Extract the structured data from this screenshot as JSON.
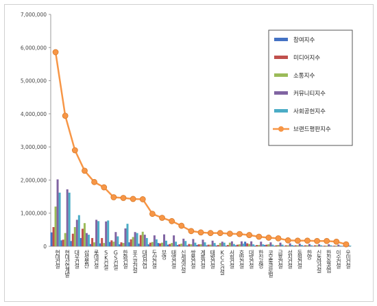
{
  "chart_data": {
    "type": "bar",
    "title": "",
    "xlabel": "",
    "ylabel": "",
    "ylim": [
      0,
      7000000
    ],
    "yticks": [
      0,
      1000000,
      2000000,
      3000000,
      4000000,
      5000000,
      6000000,
      7000000
    ],
    "ytick_labels": [
      "0",
      "1,000,000",
      "2,000,000",
      "3,000,000",
      "4,000,000",
      "5,000,000",
      "6,000,000",
      "7,000,000"
    ],
    "grid": false,
    "legend_position": "top-right",
    "categories": [
      "현대건설",
      "현대산업개발",
      "대우건설",
      "삼성물산",
      "롯데건설",
      "SK건설",
      "GS건설",
      "한화건설",
      "포스코건설",
      "대림산업",
      "두산건설",
      "부영",
      "태영건설",
      "신세계건설",
      "쌍용건설",
      "계룡건설",
      "태왕건설",
      "KCC건설",
      "서희건설",
      "호반건설",
      "대방건설",
      "한신공영",
      "코오롱글로벌",
      "금호건설",
      "성지건설",
      "동원건설",
      "한양",
      "신동아건설",
      "한진중공업",
      "이수건설",
      "우미건설"
    ],
    "series": [
      {
        "name": "참여지수",
        "kind": "bar",
        "color": "#4472c4",
        "values": [
          420000,
          180000,
          160000,
          250000,
          70000,
          90000,
          130000,
          60000,
          120000,
          80000,
          60000,
          100000,
          50000,
          40000,
          30000,
          40000,
          30000,
          25000,
          20000,
          30000,
          140000,
          20000,
          40000,
          15000,
          10000,
          20000,
          15000,
          10000,
          10000,
          10000,
          10000
        ]
      },
      {
        "name": "미디어지수",
        "kind": "bar",
        "color": "#c0504d",
        "values": [
          580000,
          200000,
          380000,
          530000,
          250000,
          250000,
          180000,
          120000,
          210000,
          340000,
          110000,
          90000,
          70000,
          60000,
          70000,
          60000,
          50000,
          40000,
          40000,
          50000,
          90000,
          40000,
          50000,
          30000,
          30000,
          30000,
          30000,
          30000,
          20000,
          20000,
          20000
        ]
      },
      {
        "name": "소통지수",
        "kind": "bar",
        "color": "#9bbb59",
        "values": [
          1200000,
          400000,
          580000,
          700000,
          120000,
          100000,
          140000,
          100000,
          280000,
          440000,
          130000,
          110000,
          100000,
          80000,
          60000,
          60000,
          50000,
          100000,
          110000,
          60000,
          70000,
          40000,
          60000,
          40000,
          30000,
          30000,
          30000,
          30000,
          20000,
          20000,
          20000
        ]
      },
      {
        "name": "커뮤니티지수",
        "kind": "bar",
        "color": "#8064a2",
        "values": [
          2020000,
          1720000,
          800000,
          400000,
          800000,
          750000,
          430000,
          540000,
          430000,
          350000,
          330000,
          360000,
          330000,
          230000,
          220000,
          200000,
          170000,
          140000,
          150000,
          150000,
          150000,
          140000,
          120000,
          110000,
          90000,
          80000,
          70000,
          60000,
          60000,
          50000,
          50000
        ]
      },
      {
        "name": "사회공헌지수",
        "kind": "bar",
        "color": "#4bacc6",
        "values": [
          1620000,
          1620000,
          940000,
          350000,
          760000,
          780000,
          300000,
          680000,
          400000,
          250000,
          210000,
          170000,
          140000,
          160000,
          110000,
          120000,
          100000,
          110000,
          70000,
          80000,
          60000,
          60000,
          50000,
          50000,
          40000,
          40000,
          30000,
          30000,
          30000,
          20000,
          20000
        ]
      },
      {
        "name": "브랜드평판지수",
        "kind": "line",
        "color": "#f79646",
        "values": [
          5860000,
          3940000,
          2900000,
          2280000,
          1940000,
          1780000,
          1480000,
          1460000,
          1430000,
          1420000,
          980000,
          860000,
          760000,
          620000,
          460000,
          420000,
          400000,
          400000,
          380000,
          370000,
          340000,
          290000,
          260000,
          240000,
          180000,
          170000,
          170000,
          160000,
          160000,
          140000,
          60000
        ]
      }
    ]
  }
}
